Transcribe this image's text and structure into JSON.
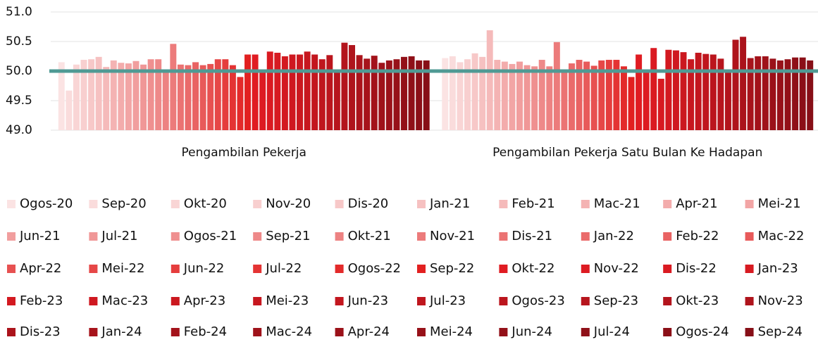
{
  "chart_data": {
    "type": "bar",
    "categories": [
      "Pengambilan Pekerja",
      "Pengambilan Pekerja Satu Bulan Ke Hadapan"
    ],
    "ylim": [
      49.0,
      51.0
    ],
    "yticks": [
      {
        "value": 49.0,
        "label": "49.0"
      },
      {
        "value": 49.5,
        "label": "49.5"
      },
      {
        "value": 50.0,
        "label": "50.0"
      },
      {
        "value": 50.5,
        "label": "50.5"
      },
      {
        "value": 51.0,
        "label": "51.0"
      }
    ],
    "grid": true,
    "reference_line": {
      "value": 50.0,
      "color": "#4f9a94"
    },
    "legend": "bottom",
    "series": [
      {
        "name": "Ogos-20",
        "color": "#fbe3e3",
        "values": [
          50.15,
          50.22
        ]
      },
      {
        "name": "Sep-20",
        "color": "#fadcdc",
        "values": [
          49.67,
          50.25
        ]
      },
      {
        "name": "Okt-20",
        "color": "#f9d5d5",
        "values": [
          50.11,
          50.15
        ]
      },
      {
        "name": "Nov-20",
        "color": "#f8cfcf",
        "values": [
          50.19,
          50.2
        ]
      },
      {
        "name": "Dis-20",
        "color": "#f7c8c8",
        "values": [
          50.2,
          50.3
        ]
      },
      {
        "name": "Jan-21",
        "color": "#f6c1c1",
        "values": [
          50.24,
          50.24
        ]
      },
      {
        "name": "Feb-21",
        "color": "#f5baba",
        "values": [
          50.07,
          50.69
        ]
      },
      {
        "name": "Mac-21",
        "color": "#f4b3b3",
        "values": [
          50.18,
          50.19
        ]
      },
      {
        "name": "Apr-21",
        "color": "#f3acac",
        "values": [
          50.14,
          50.16
        ]
      },
      {
        "name": "Mei-21",
        "color": "#f2a5a5",
        "values": [
          50.13,
          50.12
        ]
      },
      {
        "name": "Jun-21",
        "color": "#f19e9e",
        "values": [
          50.17,
          50.16
        ]
      },
      {
        "name": "Jul-21",
        "color": "#f09797",
        "values": [
          50.11,
          50.1
        ]
      },
      {
        "name": "Ogos-21",
        "color": "#ef9090",
        "values": [
          50.2,
          50.08
        ]
      },
      {
        "name": "Sep-21",
        "color": "#ee8989",
        "values": [
          50.2,
          50.19
        ]
      },
      {
        "name": "Okt-21",
        "color": "#ed8282",
        "values": [
          50.0,
          50.08
        ]
      },
      {
        "name": "Nov-21",
        "color": "#ec7b7b",
        "values": [
          50.46,
          50.49
        ]
      },
      {
        "name": "Dis-21",
        "color": "#eb7373",
        "values": [
          50.11,
          50.0
        ]
      },
      {
        "name": "Jan-22",
        "color": "#ea6b6b",
        "values": [
          50.1,
          50.13
        ]
      },
      {
        "name": "Feb-22",
        "color": "#e96363",
        "values": [
          50.15,
          50.19
        ]
      },
      {
        "name": "Mac-22",
        "color": "#e85a5a",
        "values": [
          50.1,
          50.16
        ]
      },
      {
        "name": "Apr-22",
        "color": "#e75151",
        "values": [
          50.12,
          50.09
        ]
      },
      {
        "name": "Mei-22",
        "color": "#e64747",
        "values": [
          50.2,
          50.18
        ]
      },
      {
        "name": "Jun-22",
        "color": "#e53d3d",
        "values": [
          50.2,
          50.19
        ]
      },
      {
        "name": "Jul-22",
        "color": "#e43333",
        "values": [
          50.1,
          50.19
        ]
      },
      {
        "name": "Ogos-22",
        "color": "#e32a2a",
        "values": [
          49.9,
          50.08
        ]
      },
      {
        "name": "Sep-22",
        "color": "#e22020",
        "values": [
          50.28,
          49.9
        ]
      },
      {
        "name": "Okt-22",
        "color": "#e01c22",
        "values": [
          50.28,
          50.28
        ]
      },
      {
        "name": "Nov-22",
        "color": "#dd1b22",
        "values": [
          50.0,
          50.0
        ]
      },
      {
        "name": "Dis-22",
        "color": "#da1a21",
        "values": [
          50.33,
          50.39
        ]
      },
      {
        "name": "Jan-23",
        "color": "#d71a21",
        "values": [
          50.31,
          49.87
        ]
      },
      {
        "name": "Feb-23",
        "color": "#d31920",
        "values": [
          50.25,
          50.36
        ]
      },
      {
        "name": "Mac-23",
        "color": "#cf1820",
        "values": [
          50.28,
          50.35
        ]
      },
      {
        "name": "Apr-23",
        "color": "#cb181f",
        "values": [
          50.28,
          50.32
        ]
      },
      {
        "name": "Mei-23",
        "color": "#c7171f",
        "values": [
          50.33,
          50.2
        ]
      },
      {
        "name": "Jun-23",
        "color": "#c3161e",
        "values": [
          50.28,
          50.31
        ]
      },
      {
        "name": "Jul-23",
        "color": "#bf161e",
        "values": [
          50.2,
          50.29
        ]
      },
      {
        "name": "Ogos-23",
        "color": "#bb151d",
        "values": [
          50.27,
          50.28
        ]
      },
      {
        "name": "Sep-23",
        "color": "#b7151d",
        "values": [
          50.0,
          50.21
        ]
      },
      {
        "name": "Okt-23",
        "color": "#b3141c",
        "values": [
          50.48,
          50.0
        ]
      },
      {
        "name": "Nov-23",
        "color": "#af141c",
        "values": [
          50.44,
          50.53
        ]
      },
      {
        "name": "Dis-23",
        "color": "#ab131b",
        "values": [
          50.27,
          50.58
        ]
      },
      {
        "name": "Jan-24",
        "color": "#a7131b",
        "values": [
          50.21,
          50.22
        ]
      },
      {
        "name": "Feb-24",
        "color": "#a3121a",
        "values": [
          50.26,
          50.25
        ]
      },
      {
        "name": "Mac-24",
        "color": "#9f121a",
        "values": [
          50.14,
          50.25
        ]
      },
      {
        "name": "Apr-24",
        "color": "#9b1119",
        "values": [
          50.18,
          50.21
        ]
      },
      {
        "name": "Mei-24",
        "color": "#971119",
        "values": [
          50.2,
          50.18
        ]
      },
      {
        "name": "Jun-24",
        "color": "#931018",
        "values": [
          50.24,
          50.2
        ]
      },
      {
        "name": "Jul-24",
        "color": "#8f1018",
        "values": [
          50.25,
          50.23
        ]
      },
      {
        "name": "Ogos-24",
        "color": "#8b0f17",
        "values": [
          50.18,
          50.23
        ]
      },
      {
        "name": "Sep-24",
        "color": "#870f17",
        "values": [
          50.18,
          50.18
        ]
      }
    ]
  }
}
